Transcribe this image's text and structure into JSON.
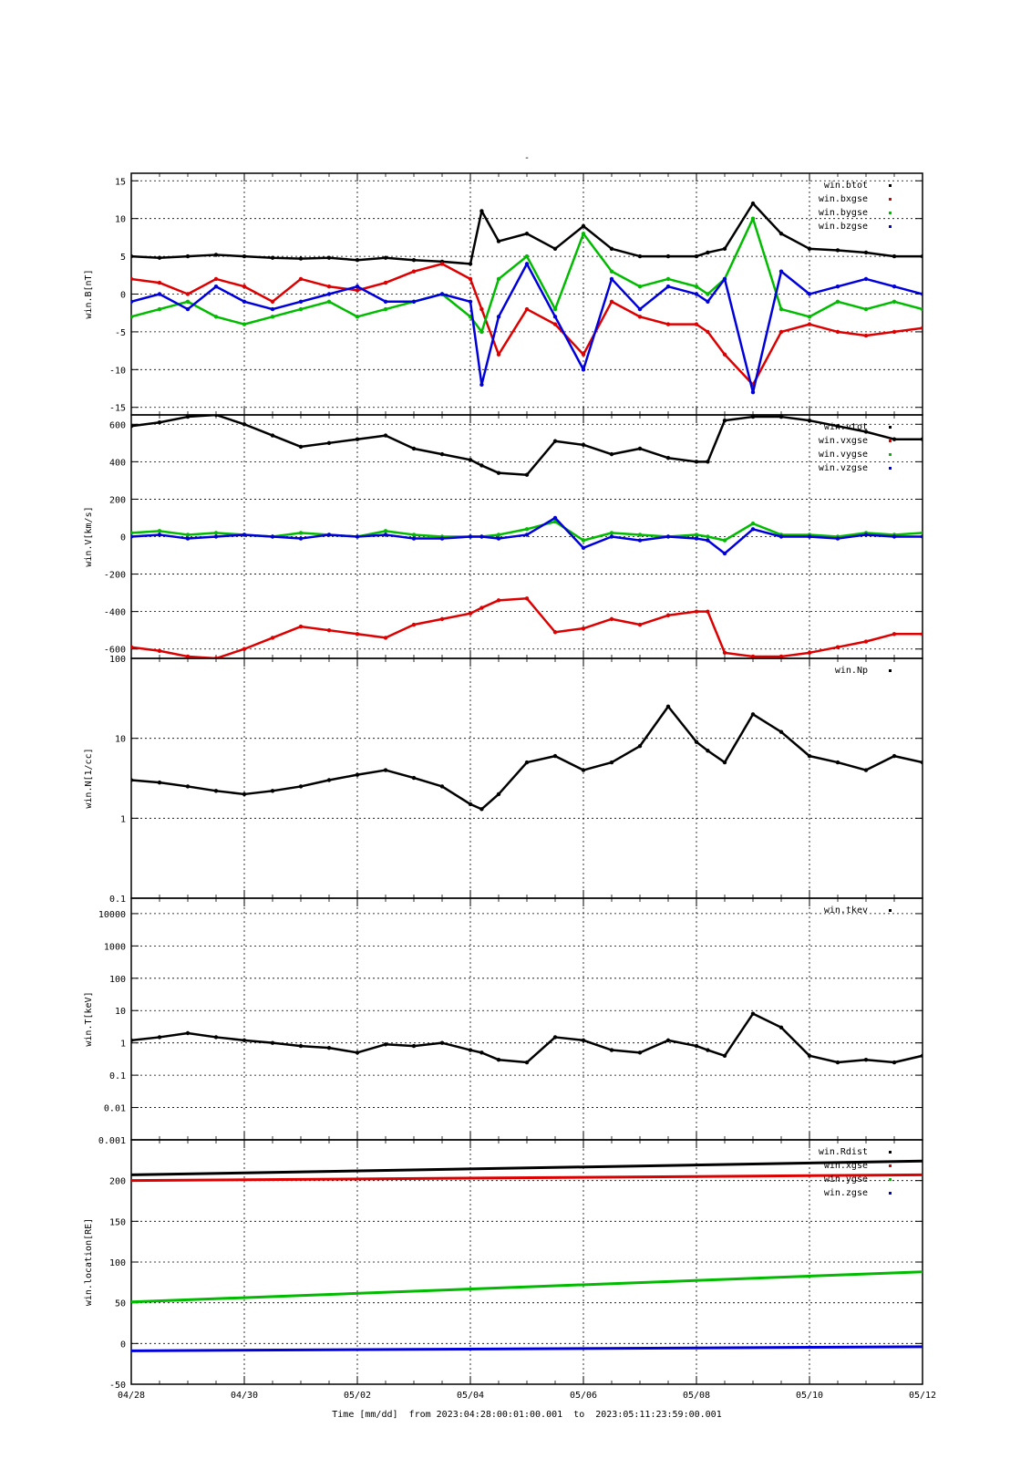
{
  "figure": {
    "title": "-",
    "footer": "Time [mm/dd]  from 2023:04:28:00:01:00.001  to  2023:05:11:23:59:00.001"
  },
  "chart_data": [
    {
      "type": "scatter",
      "ylabel": "win.B[nT]",
      "ylim": [
        -16,
        16
      ],
      "log": false,
      "yticks": [
        -15,
        -10,
        -5,
        0,
        5,
        10,
        15
      ],
      "xlim": [
        0,
        14
      ],
      "grid": true,
      "legend": "top-right",
      "series": [
        {
          "name": "win.btot",
          "color": "#000000",
          "x": [
            0,
            0.5,
            1,
            1.5,
            2,
            2.5,
            3,
            3.5,
            4,
            4.5,
            5,
            5.5,
            6,
            6.2,
            6.5,
            7,
            7.5,
            8,
            8.5,
            9,
            9.5,
            10,
            10.2,
            10.5,
            11,
            11.5,
            12,
            12.5,
            13,
            13.5,
            14
          ],
          "y": [
            5,
            4.8,
            5,
            5.2,
            5,
            4.8,
            4.7,
            4.8,
            4.5,
            4.8,
            4.5,
            4.3,
            4,
            11,
            7,
            8,
            6,
            9,
            6,
            5,
            5,
            5,
            5.5,
            6,
            12,
            8,
            6,
            5.8,
            5.5,
            5,
            5
          ]
        },
        {
          "name": "win.bxgse",
          "color": "#dd0000",
          "x": [
            0,
            0.5,
            1,
            1.5,
            2,
            2.5,
            3,
            3.5,
            4,
            4.5,
            5,
            5.5,
            6,
            6.2,
            6.5,
            7,
            7.5,
            8,
            8.5,
            9,
            9.5,
            10,
            10.2,
            10.5,
            11,
            11.5,
            12,
            12.5,
            13,
            13.5,
            14
          ],
          "y": [
            2,
            1.5,
            0,
            2,
            1,
            -1,
            2,
            1,
            0.5,
            1.5,
            3,
            4,
            2,
            -2,
            -8,
            -2,
            -4,
            -8,
            -1,
            -3,
            -4,
            -4,
            -5,
            -8,
            -12,
            -5,
            -4,
            -5,
            -5.5,
            -5,
            -4.5
          ]
        },
        {
          "name": "win.bygse",
          "color": "#00bb00",
          "x": [
            0,
            0.5,
            1,
            1.5,
            2,
            2.5,
            3,
            3.5,
            4,
            4.5,
            5,
            5.5,
            6,
            6.2,
            6.5,
            7,
            7.5,
            8,
            8.5,
            9,
            9.5,
            10,
            10.2,
            10.5,
            11,
            11.5,
            12,
            12.5,
            13,
            13.5,
            14
          ],
          "y": [
            -3,
            -2,
            -1,
            -3,
            -4,
            -3,
            -2,
            -1,
            -3,
            -2,
            -1,
            0,
            -3,
            -5,
            2,
            5,
            -2,
            8,
            3,
            1,
            2,
            1,
            0,
            2,
            10,
            -2,
            -3,
            -1,
            -2,
            -1,
            -2
          ]
        },
        {
          "name": "win.bzgse",
          "color": "#0000dd",
          "x": [
            0,
            0.5,
            1,
            1.5,
            2,
            2.5,
            3,
            3.5,
            4,
            4.5,
            5,
            5.5,
            6,
            6.2,
            6.5,
            7,
            7.5,
            8,
            8.5,
            9,
            9.5,
            10,
            10.2,
            10.5,
            11,
            11.5,
            12,
            12.5,
            13,
            13.5,
            14
          ],
          "y": [
            -1,
            0,
            -2,
            1,
            -1,
            -2,
            -1,
            0,
            1,
            -1,
            -1,
            0,
            -1,
            -12,
            -3,
            4,
            -3,
            -10,
            2,
            -2,
            1,
            0,
            -1,
            2,
            -13,
            3,
            0,
            1,
            2,
            1,
            0
          ]
        }
      ]
    },
    {
      "type": "scatter",
      "ylabel": "win.V[km/s]",
      "ylim": [
        -650,
        650
      ],
      "log": false,
      "yticks": [
        -600,
        -400,
        -200,
        0,
        200,
        400,
        600
      ],
      "xlim": [
        0,
        14
      ],
      "grid": true,
      "legend": "top-right",
      "series": [
        {
          "name": "win.vtot",
          "color": "#000000",
          "x": [
            0,
            0.5,
            1,
            1.5,
            2,
            2.5,
            3,
            3.5,
            4,
            4.5,
            5,
            5.5,
            6,
            6.2,
            6.5,
            7,
            7.5,
            8,
            8.5,
            9,
            9.5,
            10,
            10.2,
            10.5,
            11,
            11.5,
            12,
            12.5,
            13,
            13.5,
            14
          ],
          "y": [
            590,
            610,
            640,
            650,
            600,
            540,
            480,
            500,
            520,
            540,
            470,
            440,
            410,
            380,
            340,
            330,
            510,
            490,
            440,
            470,
            420,
            400,
            400,
            620,
            640,
            640,
            620,
            590,
            560,
            520,
            520
          ]
        },
        {
          "name": "win.vxgse",
          "color": "#dd0000",
          "x": [
            0,
            0.5,
            1,
            1.5,
            2,
            2.5,
            3,
            3.5,
            4,
            4.5,
            5,
            5.5,
            6,
            6.2,
            6.5,
            7,
            7.5,
            8,
            8.5,
            9,
            9.5,
            10,
            10.2,
            10.5,
            11,
            11.5,
            12,
            12.5,
            13,
            13.5,
            14
          ],
          "y": [
            -590,
            -610,
            -640,
            -650,
            -600,
            -540,
            -480,
            -500,
            -520,
            -540,
            -470,
            -440,
            -410,
            -380,
            -340,
            -330,
            -510,
            -490,
            -440,
            -470,
            -420,
            -400,
            -400,
            -620,
            -640,
            -640,
            -620,
            -590,
            -560,
            -520,
            -520
          ]
        },
        {
          "name": "win.vygse",
          "color": "#00bb00",
          "x": [
            0,
            0.5,
            1,
            1.5,
            2,
            2.5,
            3,
            3.5,
            4,
            4.5,
            5,
            5.5,
            6,
            6.2,
            6.5,
            7,
            7.5,
            8,
            8.5,
            9,
            9.5,
            10,
            10.2,
            10.5,
            11,
            11.5,
            12,
            12.5,
            13,
            13.5,
            14
          ],
          "y": [
            20,
            30,
            10,
            20,
            10,
            0,
            20,
            10,
            0,
            30,
            10,
            0,
            0,
            0,
            10,
            40,
            80,
            -20,
            20,
            10,
            0,
            10,
            0,
            -20,
            70,
            10,
            10,
            0,
            20,
            10,
            20
          ]
        },
        {
          "name": "win.vzgse",
          "color": "#0000dd",
          "x": [
            0,
            0.5,
            1,
            1.5,
            2,
            2.5,
            3,
            3.5,
            4,
            4.5,
            5,
            5.5,
            6,
            6.2,
            6.5,
            7,
            7.5,
            8,
            8.5,
            9,
            9.5,
            10,
            10.2,
            10.5,
            11,
            11.5,
            12,
            12.5,
            13,
            13.5,
            14
          ],
          "y": [
            0,
            10,
            -10,
            0,
            10,
            0,
            -10,
            10,
            0,
            10,
            -10,
            -10,
            0,
            0,
            -10,
            10,
            100,
            -60,
            0,
            -20,
            0,
            -10,
            -20,
            -90,
            40,
            0,
            0,
            -10,
            10,
            0,
            0
          ]
        }
      ]
    },
    {
      "type": "scatter",
      "ylabel": "win.N[1/cc]",
      "ylim": [
        0.1,
        100
      ],
      "log": true,
      "yticks": [
        0.1,
        1,
        10,
        100
      ],
      "xlim": [
        0,
        14
      ],
      "grid": true,
      "legend": "top-right",
      "series": [
        {
          "name": "win.Np",
          "color": "#000000",
          "x": [
            0,
            0.5,
            1,
            1.5,
            2,
            2.5,
            3,
            3.5,
            4,
            4.5,
            5,
            5.5,
            6,
            6.2,
            6.5,
            7,
            7.5,
            8,
            8.5,
            9,
            9.5,
            10,
            10.2,
            10.5,
            11,
            11.5,
            12,
            12.5,
            13,
            13.5,
            14
          ],
          "y": [
            3,
            2.8,
            2.5,
            2.2,
            2,
            2.2,
            2.5,
            3,
            3.5,
            4,
            3.2,
            2.5,
            1.5,
            1.3,
            2,
            5,
            6,
            4,
            5,
            8,
            25,
            9,
            7,
            5,
            20,
            12,
            6,
            5,
            4,
            6,
            5
          ]
        }
      ]
    },
    {
      "type": "scatter",
      "ylabel": "win.T[keV]",
      "ylim": [
        0.001,
        30000
      ],
      "log": true,
      "yticks": [
        0.001,
        0.01,
        0.1,
        1,
        10,
        100,
        1000,
        10000
      ],
      "xlim": [
        0,
        14
      ],
      "grid": true,
      "legend": "top-right",
      "series": [
        {
          "name": "win.tkev",
          "color": "#000000",
          "x": [
            0,
            0.5,
            1,
            1.5,
            2,
            2.5,
            3,
            3.5,
            4,
            4.5,
            5,
            5.5,
            6,
            6.2,
            6.5,
            7,
            7.5,
            8,
            8.5,
            9,
            9.5,
            10,
            10.2,
            10.5,
            11,
            11.5,
            12,
            12.5,
            13,
            13.5,
            14
          ],
          "y": [
            1.2,
            1.5,
            2,
            1.5,
            1.2,
            1,
            0.8,
            0.7,
            0.5,
            0.9,
            0.8,
            1,
            0.6,
            0.5,
            0.3,
            0.25,
            1.5,
            1.2,
            0.6,
            0.5,
            1.2,
            0.8,
            0.6,
            0.4,
            8,
            3,
            0.4,
            0.25,
            0.3,
            0.25,
            0.4
          ]
        }
      ]
    },
    {
      "type": "line",
      "ylabel": "win.location[RE]",
      "ylim": [
        -50,
        250
      ],
      "log": false,
      "yticks": [
        -50,
        0,
        50,
        100,
        150,
        200
      ],
      "xlim": [
        0,
        14
      ],
      "grid": true,
      "legend": "top-right",
      "series": [
        {
          "name": "win.Rdist",
          "color": "#000000",
          "x": [
            0,
            14
          ],
          "y": [
            207,
            224
          ]
        },
        {
          "name": "win.xgse",
          "color": "#dd0000",
          "x": [
            0,
            14
          ],
          "y": [
            200,
            207
          ]
        },
        {
          "name": "win.ygse",
          "color": "#00bb00",
          "x": [
            0,
            14
          ],
          "y": [
            51,
            88
          ]
        },
        {
          "name": "win.zgse",
          "color": "#0000dd",
          "x": [
            0,
            14
          ],
          "y": [
            -9,
            -4
          ]
        }
      ]
    }
  ],
  "xaxis": {
    "ticks": [
      {
        "value": 0,
        "label": "04/28"
      },
      {
        "value": 2,
        "label": "04/30"
      },
      {
        "value": 4,
        "label": "05/02"
      },
      {
        "value": 6,
        "label": "05/04"
      },
      {
        "value": 8,
        "label": "05/06"
      },
      {
        "value": 10,
        "label": "05/08"
      },
      {
        "value": 12,
        "label": "05/10"
      },
      {
        "value": 14,
        "label": "05/12"
      }
    ]
  }
}
